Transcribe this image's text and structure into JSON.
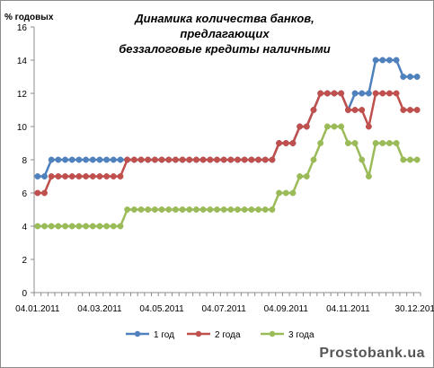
{
  "title_line1": "Динамика количества банков, предлагающих",
  "title_line2": "беззалоговые кредиты наличными",
  "watermark": "Prostobank.ua",
  "colors": {
    "grid": "#8c8c8c",
    "axis": "#8c8c8c"
  },
  "chart_data": {
    "type": "line",
    "ylabel": "% годовых",
    "ylim": [
      0,
      16
    ],
    "yticks": [
      "0",
      "2",
      "4",
      "6",
      "8",
      "10",
      "12",
      "14",
      "16"
    ],
    "x_tick_labels": [
      "04.01.2011",
      "04.03.2011",
      "04.05.2011",
      "04.07.2011",
      "04.09.2011",
      "04.11.2011",
      "30.12.2011"
    ],
    "legend_position": "bottom",
    "grid": false,
    "series": [
      {
        "name": "1 год",
        "color": "#4f81bd",
        "values": [
          7,
          7,
          8,
          8,
          8,
          8,
          8,
          8,
          8,
          8,
          8,
          8,
          8,
          8,
          8,
          8,
          8,
          8,
          8,
          8,
          8,
          8,
          8,
          8,
          8,
          8,
          8,
          8,
          8,
          8,
          8,
          8,
          8,
          8,
          8,
          9,
          9,
          9,
          10,
          10,
          11,
          12,
          12,
          12,
          12,
          11,
          12,
          12,
          12,
          14,
          14,
          14,
          14,
          13,
          13,
          13
        ]
      },
      {
        "name": "2 года",
        "color": "#c0504d",
        "values": [
          6,
          6,
          7,
          7,
          7,
          7,
          7,
          7,
          7,
          7,
          7,
          7,
          7,
          8,
          8,
          8,
          8,
          8,
          8,
          8,
          8,
          8,
          8,
          8,
          8,
          8,
          8,
          8,
          8,
          8,
          8,
          8,
          8,
          8,
          8,
          9,
          9,
          9,
          10,
          10,
          11,
          12,
          12,
          12,
          12,
          11,
          11,
          11,
          10,
          12,
          12,
          12,
          12,
          11,
          11,
          11
        ]
      },
      {
        "name": "3 года",
        "color": "#9bbb59",
        "values": [
          4,
          4,
          4,
          4,
          4,
          4,
          4,
          4,
          4,
          4,
          4,
          4,
          4,
          5,
          5,
          5,
          5,
          5,
          5,
          5,
          5,
          5,
          5,
          5,
          5,
          5,
          5,
          5,
          5,
          5,
          5,
          5,
          5,
          5,
          5,
          6,
          6,
          6,
          7,
          7,
          8,
          9,
          10,
          10,
          10,
          9,
          9,
          8,
          7,
          9,
          9,
          9,
          9,
          8,
          8,
          8
        ]
      }
    ]
  }
}
